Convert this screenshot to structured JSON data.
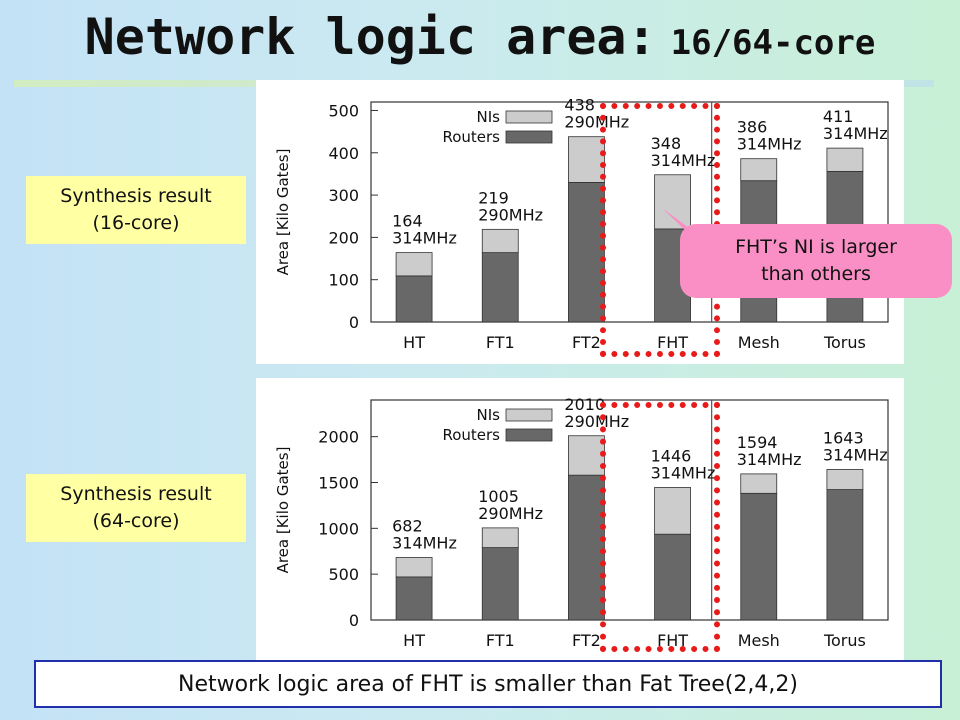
{
  "slide": {
    "title": "Network logic area:",
    "title_sub": "16/64-core",
    "label_16": [
      "Synthesis result",
      "(16-core)"
    ],
    "label_64": [
      "Synthesis result",
      "(64-core)"
    ],
    "callout": [
      "FHT’s NI is larger",
      "than others"
    ],
    "conclusion": "Network logic area of FHT is smaller than Fat Tree(2,4,2)"
  },
  "colors": {
    "nis": "#cccccc",
    "routers": "#686868",
    "highlight": "#e81a1a",
    "callout": "#f98fc4",
    "label_bg": "#ffffa3",
    "conclusion_border": "#2130a8"
  },
  "chart_data": [
    {
      "type": "bar",
      "stacked": true,
      "categories": [
        "HT",
        "FT1",
        "FT2",
        "FHT",
        "Mesh",
        "Torus"
      ],
      "series": [
        {
          "name": "NIs",
          "values": [
            55,
            55,
            108,
            128,
            52,
            55
          ]
        },
        {
          "name": "Routers",
          "values": [
            109,
            164,
            330,
            220,
            334,
            356
          ]
        }
      ],
      "bar_labels": [
        "164",
        "219",
        "438",
        "348",
        "386",
        "411"
      ],
      "freq_labels": [
        "314MHz",
        "290MHz",
        "290MHz",
        "314MHz",
        "314MHz",
        "314MHz"
      ],
      "ylabel": "Area [Kilo Gates]",
      "ylim": [
        0,
        520
      ],
      "yticks": [
        0,
        100,
        200,
        300,
        400,
        500
      ],
      "legend": "top-left",
      "separator_after": "FHT"
    },
    {
      "type": "bar",
      "stacked": true,
      "categories": [
        "HT",
        "FT1",
        "FT2",
        "FHT",
        "Mesh",
        "Torus"
      ],
      "series": [
        {
          "name": "NIs",
          "values": [
            212,
            215,
            430,
            510,
            212,
            220
          ]
        },
        {
          "name": "Routers",
          "values": [
            470,
            790,
            1580,
            936,
            1382,
            1423
          ]
        }
      ],
      "bar_labels": [
        "682",
        "1005",
        "2010",
        "1446",
        "1594",
        "1643"
      ],
      "freq_labels": [
        "314MHz",
        "290MHz",
        "290MHz",
        "314MHz",
        "314MHz",
        "314MHz"
      ],
      "ylabel": "Area [Kilo Gates]",
      "ylim": [
        0,
        2400
      ],
      "yticks": [
        0,
        500,
        1000,
        1500,
        2000
      ],
      "legend": "top-left",
      "separator_after": "FHT"
    }
  ]
}
